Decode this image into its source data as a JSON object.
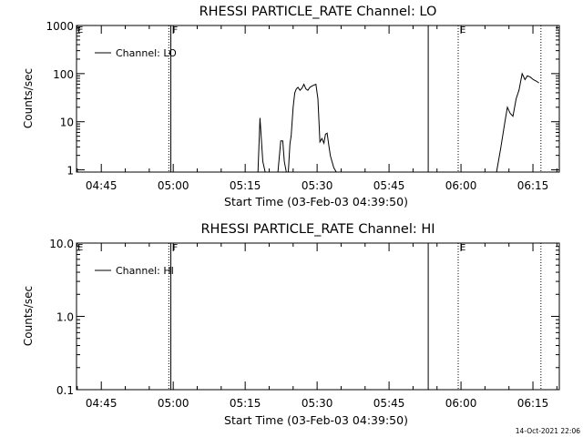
{
  "chart_data": [
    {
      "type": "line",
      "title": "RHESSI PARTICLE_RATE Channel: LO",
      "xlabel": "Start Time (03-Feb-03 04:39:50)",
      "ylabel": "Counts/sec",
      "y_scale": "log",
      "xlim": [
        "04:39:50",
        "06:20:30"
      ],
      "ylim": [
        0.9,
        1000
      ],
      "x_tick_labels": [
        "04:45",
        "05:00",
        "05:15",
        "05:30",
        "05:45",
        "06:00",
        "06:15"
      ],
      "y_tick_labels": [
        "1",
        "10",
        "100",
        "1000"
      ],
      "legend": "top-left",
      "series": [
        {
          "name": "Channel: LO",
          "segments": [
            {
              "x": [
                "05:17:40",
                "05:18:05",
                "05:18:40",
                "05:19:10"
              ],
              "y": [
                0.9,
                12,
                1.5,
                0.9
              ]
            },
            {
              "x": [
                "05:21:50",
                "05:22:25",
                "05:22:50",
                "05:23:10",
                "05:23:35"
              ],
              "y": [
                0.9,
                4,
                4,
                1.5,
                0.9
              ]
            },
            {
              "x": [
                "05:24:00",
                "05:24:20",
                "05:24:35",
                "05:25:00",
                "05:25:20",
                "05:25:40",
                "05:26:00",
                "05:26:25",
                "05:26:50",
                "05:27:15",
                "05:27:40",
                "05:28:05",
                "05:28:30",
                "05:28:55",
                "05:29:20",
                "05:29:45",
                "05:30:10",
                "05:30:35",
                "05:31:00",
                "05:31:25",
                "05:31:45",
                "05:32:05",
                "05:32:25",
                "05:32:45",
                "05:33:05",
                "05:33:30",
                "05:34:00"
              ],
              "y": [
                0.9,
                3.5,
                5,
                20,
                40,
                48,
                52,
                45,
                50,
                60,
                48,
                45,
                52,
                55,
                58,
                60,
                30,
                3.8,
                4.5,
                3.6,
                5.5,
                5.8,
                3.4,
                2,
                1.5,
                1.1,
                0.9
              ]
            },
            {
              "x": [
                "06:07:25",
                "06:08:20",
                "06:09:10",
                "06:09:40",
                "06:10:15",
                "06:10:50",
                "06:11:30",
                "06:12:05",
                "06:12:45",
                "06:13:20",
                "06:13:50",
                "06:14:25",
                "06:15:05",
                "06:15:40",
                "06:16:15"
              ],
              "y": [
                0.9,
                3,
                10,
                20,
                15,
                13,
                30,
                45,
                100,
                75,
                90,
                85,
                75,
                70,
                64
              ]
            }
          ]
        }
      ],
      "vertical_lines": [
        {
          "x": "04:59:05",
          "style": "dotted"
        },
        {
          "x": "04:59:30",
          "style": "solid",
          "label": "F"
        },
        {
          "x": "05:53:10",
          "style": "solid"
        },
        {
          "x": "05:59:25",
          "style": "dotted",
          "label": "E"
        },
        {
          "x": "06:16:40",
          "style": "dotted"
        }
      ],
      "corner_marker": "E"
    },
    {
      "type": "line",
      "title": "RHESSI PARTICLE_RATE Channel: HI",
      "xlabel": "Start Time (03-Feb-03 04:39:50)",
      "ylabel": "Counts/sec",
      "y_scale": "log",
      "xlim": [
        "04:39:50",
        "06:20:30"
      ],
      "ylim": [
        0.1,
        10
      ],
      "x_tick_labels": [
        "04:45",
        "05:00",
        "05:15",
        "05:30",
        "05:45",
        "06:00",
        "06:15"
      ],
      "y_tick_labels": [
        "0.1",
        "1.0",
        "10.0"
      ],
      "legend": "top-left",
      "series": [
        {
          "name": "Channel: HI",
          "segments": []
        }
      ],
      "vertical_lines": [
        {
          "x": "04:59:05",
          "style": "dotted"
        },
        {
          "x": "04:59:30",
          "style": "solid",
          "label": "F"
        },
        {
          "x": "05:53:10",
          "style": "solid"
        },
        {
          "x": "05:59:25",
          "style": "dotted",
          "label": "E"
        },
        {
          "x": "06:16:40",
          "style": "dotted"
        }
      ],
      "corner_marker": "E"
    }
  ],
  "footer": {
    "timestamp": "14-Oct-2021 22:06"
  }
}
